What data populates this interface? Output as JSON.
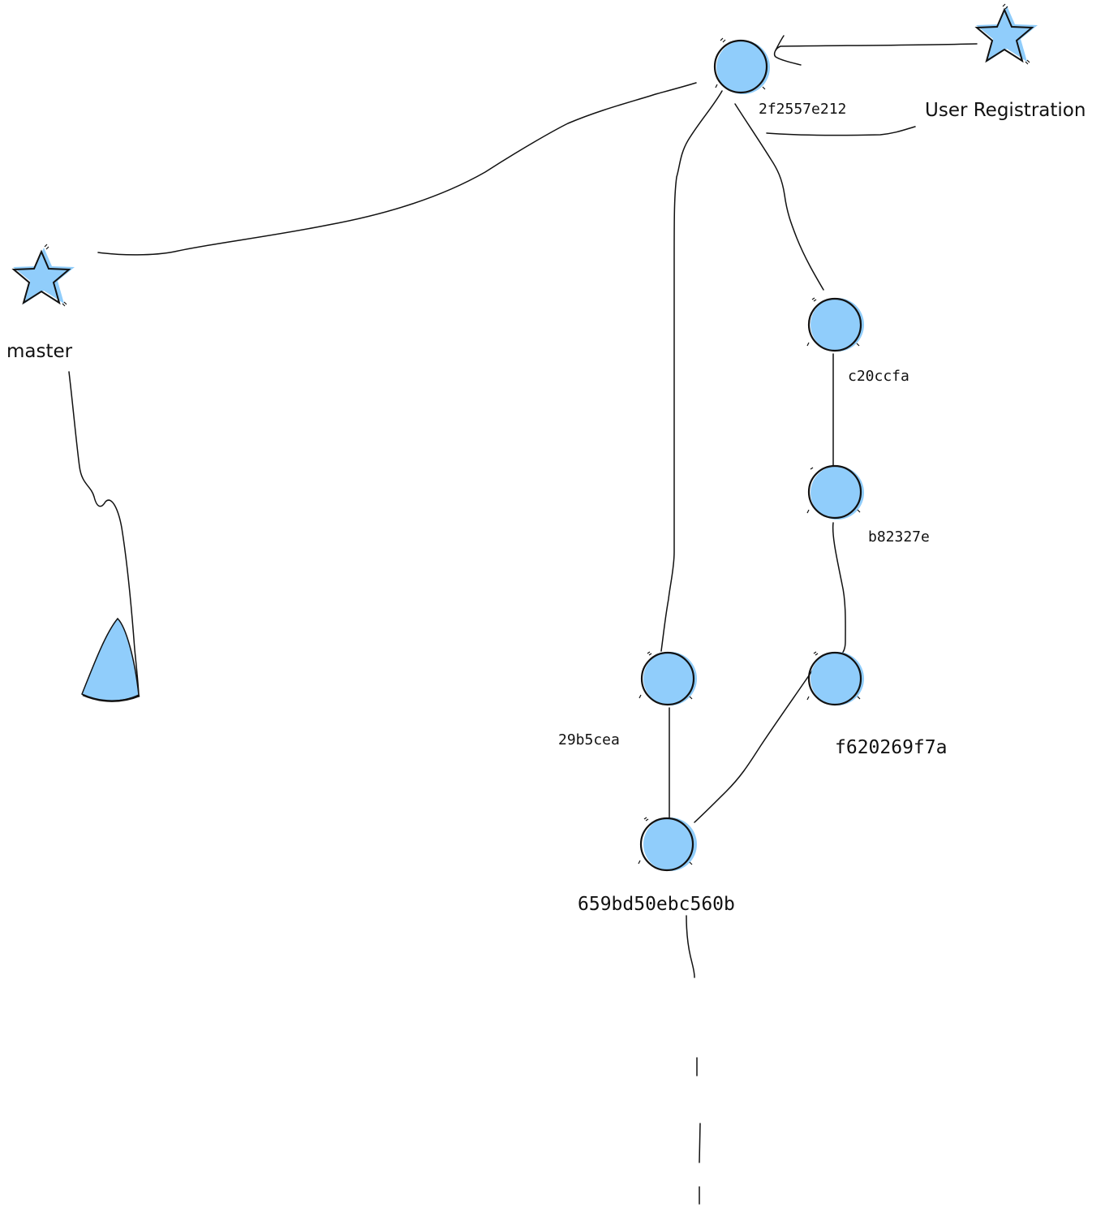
{
  "diagram": {
    "colors": {
      "node": "#90CDFB",
      "ink": "#111111"
    },
    "branches": [
      {
        "id": "branch-master",
        "label": "master",
        "icon": "star-icon"
      },
      {
        "id": "branch-user-registration",
        "label": "User Registration",
        "icon": "star-icon"
      }
    ],
    "commits": [
      {
        "id": "c1",
        "label": "2f2557e212"
      },
      {
        "id": "c2",
        "label": "c20ccfa"
      },
      {
        "id": "c3",
        "label": "b82327e"
      },
      {
        "id": "c4",
        "label": "f620269f7a"
      },
      {
        "id": "c5",
        "label": "29b5cea"
      },
      {
        "id": "c6",
        "label": "659bd50ebc560b"
      }
    ],
    "root_marker": {
      "icon": "cone-icon"
    }
  }
}
